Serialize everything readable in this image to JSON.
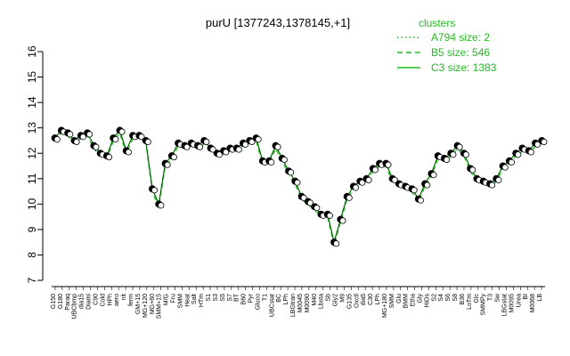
{
  "chart_data": {
    "type": "scatter",
    "title": "purU [1377243,1378145,+1]",
    "xlabel": "",
    "ylabel": "",
    "ylim": [
      7,
      16
    ],
    "yticks": [
      7,
      8,
      9,
      10,
      11,
      12,
      13,
      14,
      15,
      16
    ],
    "categories": [
      "G150",
      "G135",
      "G180",
      "Paraq",
      "UBCbmp",
      "Oxctl",
      "dia15",
      "Diami",
      "dia5",
      "C90",
      "C30",
      "Cold",
      "HPh",
      "LPh",
      "aero",
      "nit",
      "ferm",
      "GM+15",
      "GM+30",
      "MG+120",
      "MG+180",
      "MG+60",
      "MG+90",
      "SMM+15",
      "M/G",
      "Mal",
      "Fru",
      "Glu",
      "SMM",
      "BMM",
      "Heat",
      "Salt",
      "Etha",
      "Gly",
      "HTm",
      "HiOs",
      "S1",
      "S2",
      "S3",
      "S4",
      "S5",
      "S6",
      "S7",
      "S8",
      "BT",
      "B36",
      "B60",
      "LoTm",
      "Pyr",
      "Gluco",
      "Glucon",
      "SMMPy",
      "T1",
      "T2",
      "T3",
      "T4",
      "T5",
      "UBCstat",
      "BC",
      "Sw",
      "LPh1",
      "LBGstat",
      "LBGtran",
      "M0045",
      "M0090",
      "M40",
      "Urea",
      "M0095",
      "Lbsta",
      "Sb",
      "BI",
      "M0068",
      "M9",
      "U",
      "LB",
      "Gly2"
    ],
    "x_tick_labels": [
      "G150",
      "G180",
      "Paraq",
      "UBCbmp",
      "dia15",
      "Diami",
      "C90",
      "Cold",
      "HPh",
      "aero",
      "nit",
      "ferm",
      "GM+15",
      "MG+120",
      "MG+60",
      "SMM+15",
      "M/G",
      "Fru",
      "SMM",
      "Heat",
      "Salt",
      "HTm",
      "S1",
      "S3",
      "S5",
      "S7",
      "BT",
      "B60",
      "Pyr",
      "Gluco",
      "T1",
      "UBCstat",
      "BC",
      "LPh",
      "LBGtran",
      "M0045",
      "M0090",
      "M40",
      "Lbsta",
      "Sb",
      "Gly2",
      "M9",
      "G135",
      "Oxctl",
      "dia5",
      "C30",
      "LPh",
      "MG+180",
      "SMM",
      "Glu",
      "BMM",
      "Etha",
      "Gly",
      "HiOs",
      "S2",
      "S4",
      "S6",
      "S8",
      "B36",
      "LoTm",
      "Glc",
      "SMMPy",
      "T3",
      "Sw",
      "LBGstat",
      "M0095",
      "Urea",
      "BI",
      "M0068",
      "LB"
    ],
    "series": [
      {
        "name": "",
        "values": [
          12.6,
          12.9,
          12.8,
          12.5,
          12.7,
          12.8,
          12.3,
          12.0,
          11.9,
          12.6,
          12.9,
          12.1,
          12.7,
          12.7,
          12.5,
          10.6,
          10.0,
          11.6,
          11.9,
          12.4,
          12.3,
          12.4,
          12.3,
          12.5,
          12.2,
          12.0,
          12.1,
          12.2,
          12.2,
          12.4,
          12.5,
          12.6,
          11.7,
          11.7,
          12.3,
          11.8,
          11.3,
          10.9,
          10.3,
          10.1,
          9.9,
          9.6,
          9.6,
          8.5,
          9.4,
          10.3,
          10.7,
          10.9,
          11.0,
          11.4,
          11.6,
          11.6,
          11.0,
          10.8,
          10.7,
          10.6,
          10.2,
          10.8,
          11.2,
          11.9,
          11.8,
          12.0,
          12.3,
          12.0,
          11.4,
          11.0,
          10.9,
          10.8,
          11.0,
          11.5,
          11.7,
          12.0,
          12.2,
          12.1,
          12.4,
          12.5
        ]
      }
    ],
    "legend": {
      "title": "clusters",
      "placement": "top-right",
      "items": [
        {
          "label": "A794 size: 2",
          "style": "dotted"
        },
        {
          "label": "B5 size: 546",
          "style": "dashed"
        },
        {
          "label": "C3 size: 1383",
          "style": "solid"
        }
      ]
    },
    "colors": {
      "line": "#22bb22",
      "points": "#000000",
      "legend": "#22bb22"
    },
    "grid": false
  }
}
